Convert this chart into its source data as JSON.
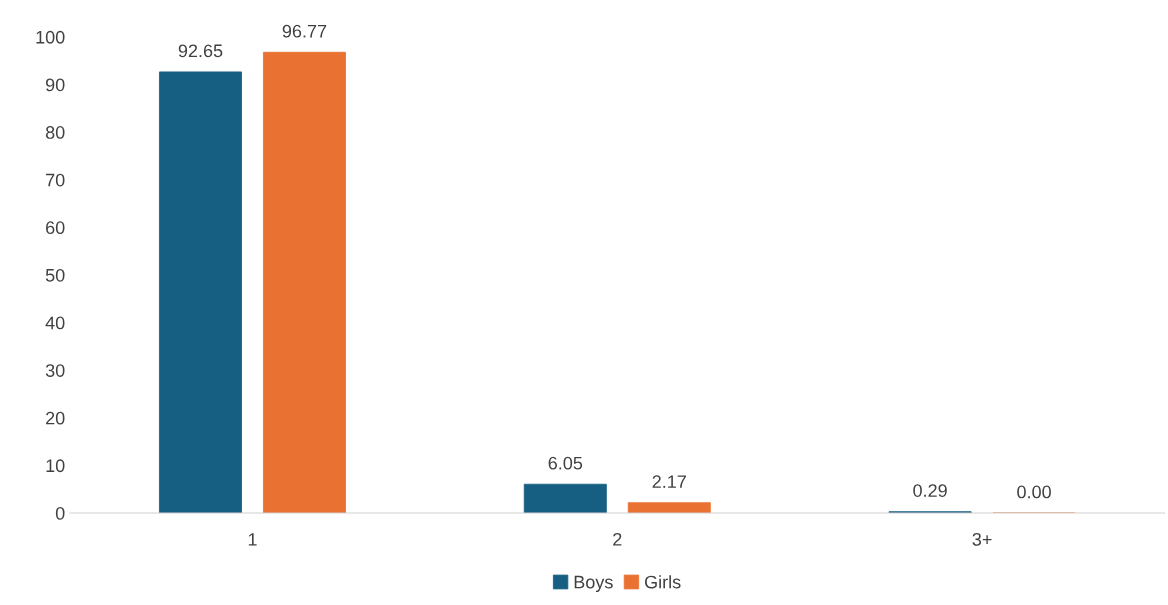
{
  "chart_data": {
    "type": "bar",
    "categories": [
      "1",
      "2",
      "3+"
    ],
    "series": [
      {
        "name": "Boys",
        "color": "#175f82",
        "values": [
          92.65,
          6.05,
          0.29
        ],
        "value_labels": [
          "92.65",
          "6.05",
          "0.29"
        ]
      },
      {
        "name": "Girls",
        "color": "#e97132",
        "values": [
          96.77,
          2.17,
          0.0
        ],
        "value_labels": [
          "96.77",
          "2.17",
          "0.00"
        ]
      }
    ],
    "ylim": [
      0,
      100
    ],
    "yticks": [
      0,
      10,
      20,
      30,
      40,
      50,
      60,
      70,
      80,
      90,
      100
    ],
    "grid": false,
    "legend": "bottom"
  }
}
